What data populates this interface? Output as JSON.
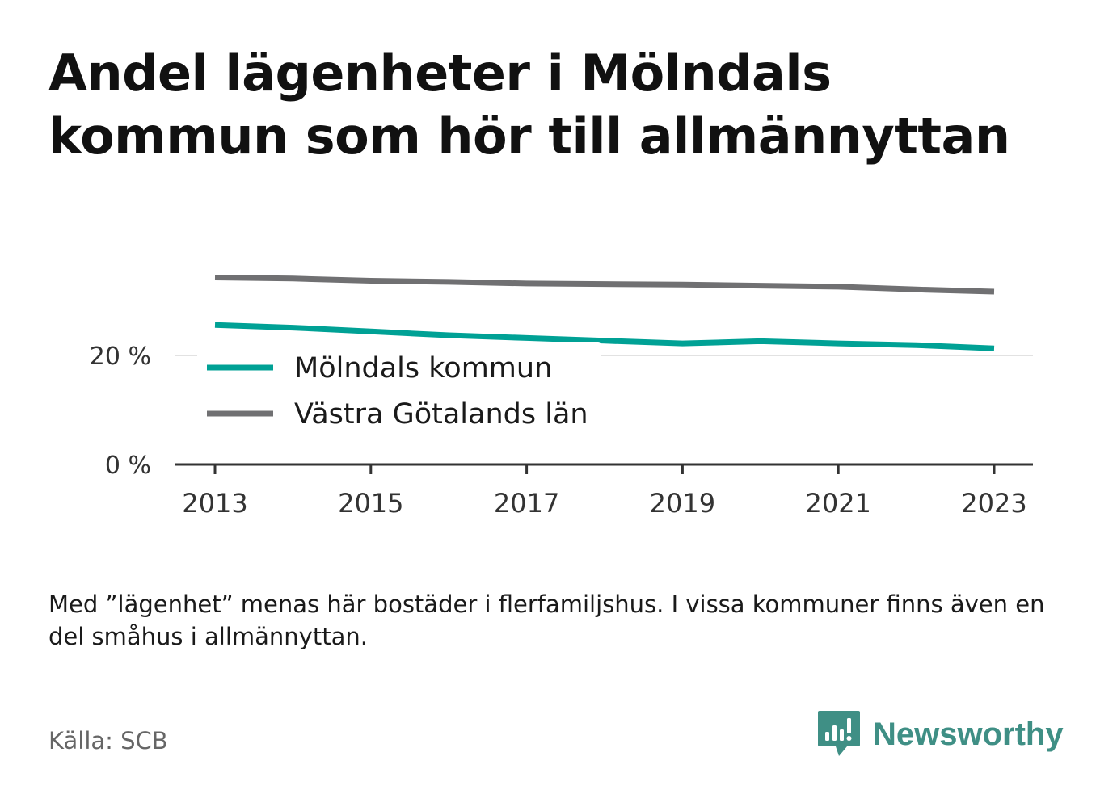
{
  "title": "Andel lägenheter i Mölndals kommun som hör till allmännyttan",
  "note": "Med ”lägenhet” menas här bostäder i flerfamiljshus. I vissa kommuner finns även en del småhus i allmännyttan.",
  "source": "Källa: SCB",
  "brand": {
    "name": "Newsworthy",
    "icon": "newsworthy-logo-icon",
    "color": "#3f8f85"
  },
  "chart_data": {
    "type": "line",
    "x": [
      2013,
      2014,
      2015,
      2016,
      2017,
      2018,
      2019,
      2020,
      2021,
      2022,
      2023
    ],
    "series": [
      {
        "name": "Mölndals kommun",
        "color": "#00a195",
        "values": [
          25.6,
          25.1,
          24.4,
          23.7,
          23.2,
          22.7,
          22.2,
          22.6,
          22.2,
          21.9,
          21.3
        ]
      },
      {
        "name": "Västra Götalands län",
        "color": "#707072",
        "values": [
          34.3,
          34.1,
          33.7,
          33.5,
          33.2,
          33.1,
          33.0,
          32.8,
          32.6,
          32.1,
          31.7
        ]
      }
    ],
    "ylim": [
      0,
      40
    ],
    "yticks": [
      0,
      20
    ],
    "ytick_labels": [
      "0 %",
      "20 %"
    ],
    "xticks": [
      2013,
      2015,
      2017,
      2019,
      2021,
      2023
    ],
    "xtick_labels": [
      "2013",
      "2015",
      "2017",
      "2019",
      "2021",
      "2023"
    ],
    "grid": true,
    "legend_position": "bottom-left"
  }
}
